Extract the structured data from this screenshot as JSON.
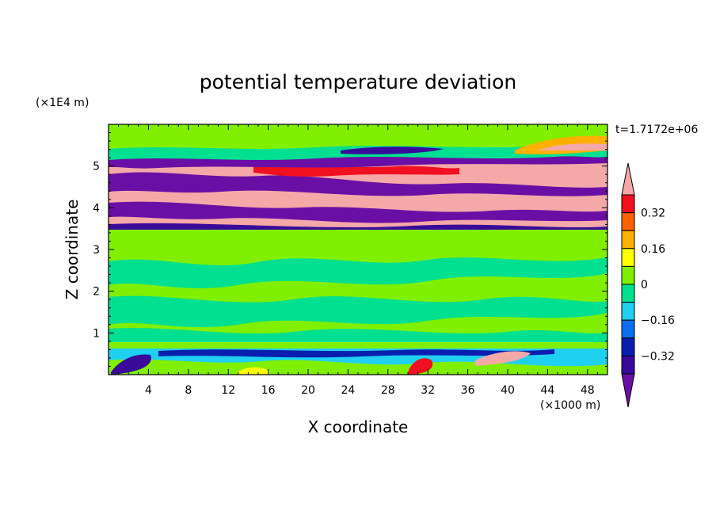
{
  "chart_data": {
    "type": "heatmap",
    "title": "potential temperature deviation",
    "xlabel": "X coordinate",
    "ylabel": "Z coordinate",
    "x_unit": "(×1000 m)",
    "y_unit": "(×1E4 m)",
    "time_label": "t=1.7172e+06",
    "xlim": [
      0,
      50
    ],
    "ylim": [
      0,
      6
    ],
    "x_ticks": [
      "4",
      "8",
      "12",
      "16",
      "20",
      "24",
      "28",
      "32",
      "36",
      "40",
      "44",
      "48"
    ],
    "y_ticks": [
      "1",
      "2",
      "3",
      "4",
      "5"
    ],
    "colorbar": {
      "levels": [
        -0.48,
        -0.4,
        -0.32,
        -0.24,
        -0.16,
        -0.08,
        0,
        0.08,
        0.16,
        0.24,
        0.32,
        0.4,
        0.48
      ],
      "tick_labels": [
        "0.32",
        "0.16",
        "0",
        "−0.16",
        "−0.32"
      ],
      "colors": [
        "#6a0fa6",
        "#3a0a9a",
        "#0a1fb0",
        "#0a70f0",
        "#20d0f0",
        "#00e090",
        "#80f000",
        "#ffff00",
        "#ffb000",
        "#ff6000",
        "#f01020",
        "#f5a8a8"
      ]
    },
    "bands": [
      {
        "z_range": [
          5.55,
          6.0
        ],
        "value": 0.05,
        "desc": "green layer at top"
      },
      {
        "z_range": [
          5.0,
          5.55
        ],
        "value": 0.5,
        "desc": "pink / purple alternating"
      },
      {
        "z_range": [
          3.5,
          5.0
        ],
        "value": -0.45,
        "desc": "purple and pink stripes"
      },
      {
        "z_range": [
          0.6,
          3.5
        ],
        "value": 0.02,
        "desc": "green turbulent layer"
      },
      {
        "z_range": [
          0.0,
          0.6
        ],
        "value": -0.2,
        "desc": "mixed near surface"
      }
    ]
  }
}
